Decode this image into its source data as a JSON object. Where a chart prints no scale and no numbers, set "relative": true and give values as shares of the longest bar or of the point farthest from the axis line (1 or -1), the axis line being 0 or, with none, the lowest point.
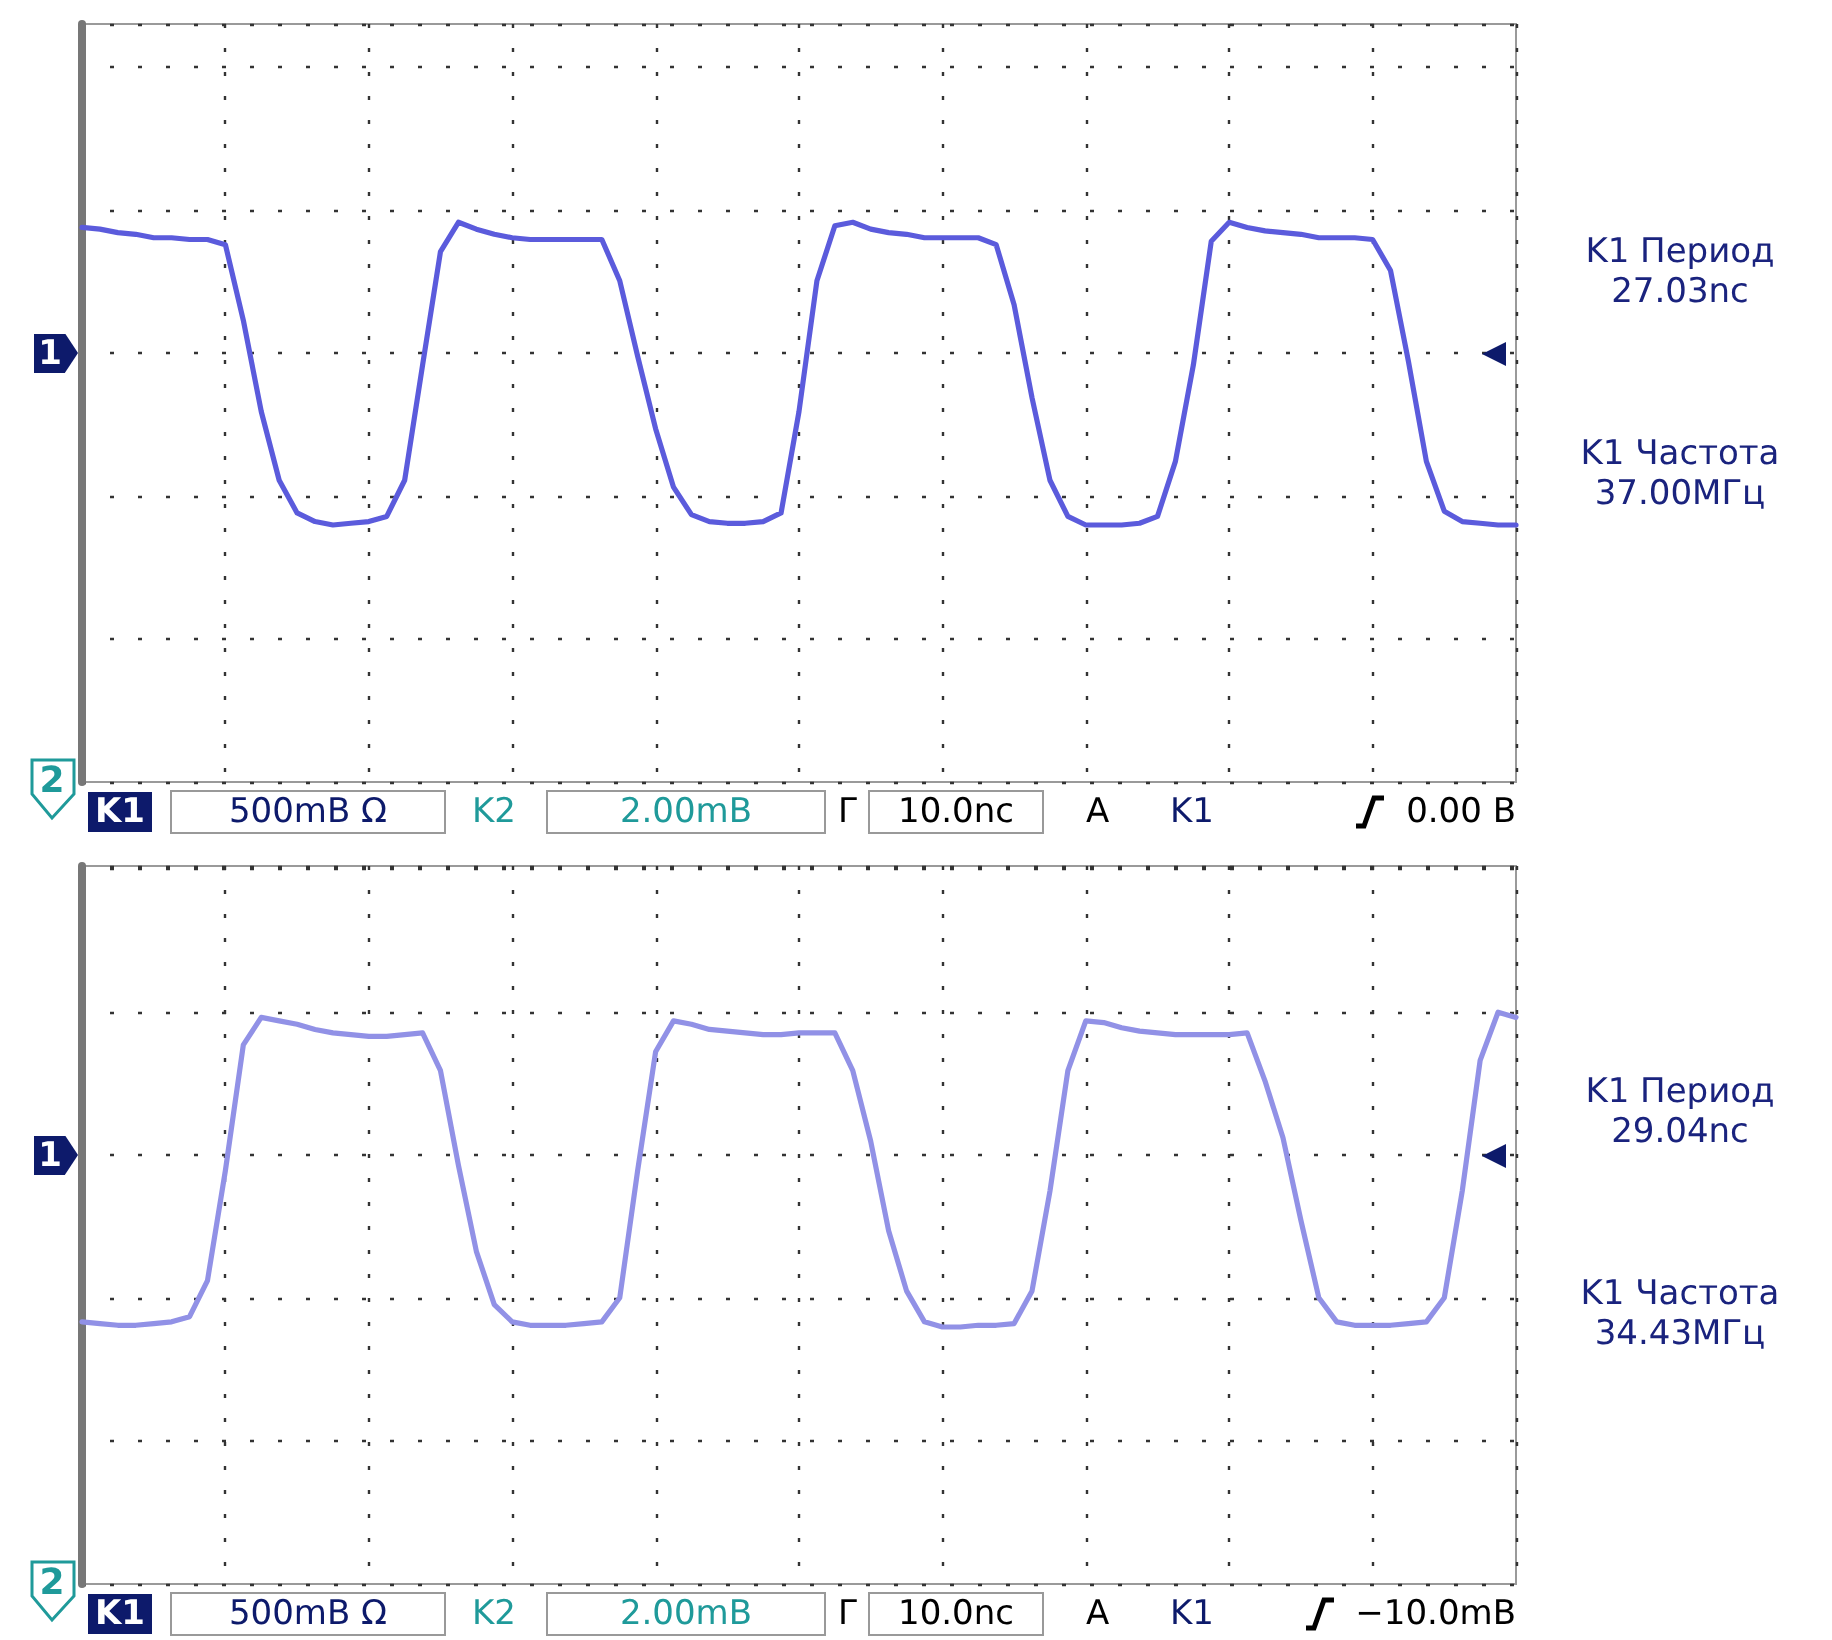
{
  "chart_data": [
    {
      "type": "line",
      "relative": true,
      "grid": true,
      "line_style": "solid",
      "categories": [
        null,
        null,
        null,
        null,
        null,
        null,
        null,
        null,
        null,
        null,
        null,
        null,
        null,
        null,
        null,
        null,
        null,
        null,
        null,
        null,
        null,
        null,
        null,
        null,
        null,
        null,
        null,
        null,
        null,
        null,
        null,
        null,
        null,
        null,
        null,
        null,
        null,
        null,
        null,
        null,
        null,
        null,
        null,
        null,
        null,
        null,
        null,
        null,
        null,
        null,
        null,
        null,
        null,
        null,
        null,
        null,
        null,
        null,
        null,
        null,
        null,
        null,
        null,
        null,
        null,
        null,
        null,
        null,
        null,
        null,
        null,
        null,
        null,
        null,
        null,
        null,
        null,
        null,
        null,
        null,
        null
      ],
      "series": [
        {
          "color": "#5b5bdc",
          "values": [
            0.73,
            0.72,
            0.7,
            0.69,
            0.67,
            0.67,
            0.66,
            0.66,
            0.63,
            0.19,
            -0.34,
            -0.74,
            -0.93,
            -0.98,
            -1,
            -0.99,
            -0.98,
            -0.95,
            -0.74,
            -0.07,
            0.59,
            0.76,
            0.72,
            0.69,
            0.67,
            0.66,
            0.66,
            0.66,
            0.66,
            0.66,
            0.42,
            -0.02,
            -0.44,
            -0.78,
            -0.94,
            -0.98,
            -0.99,
            -0.99,
            -0.98,
            -0.93,
            -0.34,
            0.42,
            0.74,
            0.76,
            0.72,
            0.7,
            0.69,
            0.67,
            0.67,
            0.67,
            0.67,
            0.63,
            0.28,
            -0.26,
            -0.74,
            -0.95,
            -1,
            -1,
            -1,
            -0.99,
            -0.95,
            -0.63,
            -0.07,
            0.65,
            0.76,
            0.73,
            0.71,
            0.7,
            0.69,
            0.67,
            0.67,
            0.67,
            0.66,
            0.48,
            -0.05,
            -0.63,
            -0.92,
            -0.98,
            -0.99,
            -1,
            -1
          ]
        }
      ],
      "annotations": [
        "1",
        "2",
        "K1",
        "500mB Ω",
        "K2",
        "2.00mB",
        "Г",
        "10.0nc",
        "A",
        "K1",
        "0.00 B",
        "K1 Период",
        "27.03nc",
        "K1 Частота",
        "37.00МГц"
      ]
    },
    {
      "type": "line",
      "relative": true,
      "grid": true,
      "line_style": "solid",
      "categories": [
        null,
        null,
        null,
        null,
        null,
        null,
        null,
        null,
        null,
        null,
        null,
        null,
        null,
        null,
        null,
        null,
        null,
        null,
        null,
        null,
        null,
        null,
        null,
        null,
        null,
        null,
        null,
        null,
        null,
        null,
        null,
        null,
        null,
        null,
        null,
        null,
        null,
        null,
        null,
        null,
        null,
        null,
        null,
        null,
        null,
        null,
        null,
        null,
        null,
        null,
        null,
        null,
        null,
        null,
        null,
        null,
        null,
        null,
        null,
        null,
        null,
        null,
        null,
        null,
        null,
        null,
        null,
        null,
        null,
        null,
        null,
        null,
        null,
        null,
        null,
        null,
        null,
        null,
        null,
        null,
        null
      ],
      "series": [
        {
          "color": "#9191e6",
          "values": [
            -0.97,
            -0.98,
            -0.99,
            -0.99,
            -0.98,
            -0.97,
            -0.94,
            -0.73,
            -0.09,
            0.64,
            0.8,
            0.78,
            0.76,
            0.73,
            0.71,
            0.7,
            0.69,
            0.69,
            0.7,
            0.71,
            0.49,
            -0.06,
            -0.56,
            -0.87,
            -0.97,
            -0.99,
            -0.99,
            -0.99,
            -0.98,
            -0.97,
            -0.83,
            -0.09,
            0.6,
            0.78,
            0.76,
            0.73,
            0.72,
            0.71,
            0.7,
            0.7,
            0.71,
            0.71,
            0.71,
            0.49,
            0.08,
            -0.44,
            -0.79,
            -0.97,
            -1,
            -1,
            -0.99,
            -0.99,
            -0.98,
            -0.79,
            -0.21,
            0.49,
            0.78,
            0.77,
            0.74,
            0.72,
            0.71,
            0.7,
            0.7,
            0.7,
            0.7,
            0.71,
            0.43,
            0.1,
            -0.38,
            -0.83,
            -0.97,
            -0.99,
            -0.99,
            -0.99,
            -0.98,
            -0.97,
            -0.83,
            -0.21,
            0.55,
            0.83,
            0.8
          ]
        }
      ],
      "annotations": [
        "1",
        "2",
        "K1",
        "500mB Ω",
        "K2",
        "2.00mB",
        "Г",
        "10.0nc",
        "A",
        "K1",
        "−10.0mB",
        "K1 Период",
        "29.04nc",
        "K1 Частота",
        "34.43МГц"
      ]
    }
  ]
}
